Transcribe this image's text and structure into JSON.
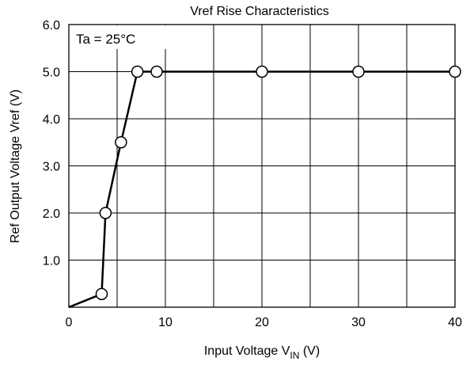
{
  "chart_data": {
    "type": "line",
    "title": "Vref Rise Characteristics",
    "annotation": "Ta = 25°C",
    "xlabel": {
      "main": "Input Voltage V",
      "sub": "IN",
      "tail": " (V)"
    },
    "ylabel": "Ref Output Voltage Vref (V)",
    "xlim": [
      0,
      40
    ],
    "ylim": [
      0,
      6.0
    ],
    "x_ticks": [
      0,
      10,
      20,
      30,
      40
    ],
    "x_tick_labels": [
      "0",
      "10",
      "20",
      "30",
      "40"
    ],
    "x_grid": [
      5,
      10,
      15,
      20,
      25,
      30,
      35,
      40
    ],
    "y_ticks": [
      1.0,
      2.0,
      3.0,
      4.0,
      5.0,
      6.0
    ],
    "y_tick_labels": [
      "1.0",
      "2.0",
      "3.0",
      "4.0",
      "5.0",
      "6.0"
    ],
    "grid": true,
    "series": [
      {
        "points": [
          {
            "x": 0,
            "y": 0,
            "marker": false
          },
          {
            "x": 3.4,
            "y": 0.28,
            "marker": true
          },
          {
            "x": 3.8,
            "y": 2.0,
            "marker": true
          },
          {
            "x": 5.4,
            "y": 3.5,
            "marker": true
          },
          {
            "x": 7.1,
            "y": 5.0,
            "marker": true
          },
          {
            "x": 9.1,
            "y": 5.0,
            "marker": true
          },
          {
            "x": 20,
            "y": 5.0,
            "marker": true
          },
          {
            "x": 30,
            "y": 5.0,
            "marker": true
          },
          {
            "x": 40,
            "y": 5.0,
            "marker": true
          }
        ]
      }
    ]
  }
}
